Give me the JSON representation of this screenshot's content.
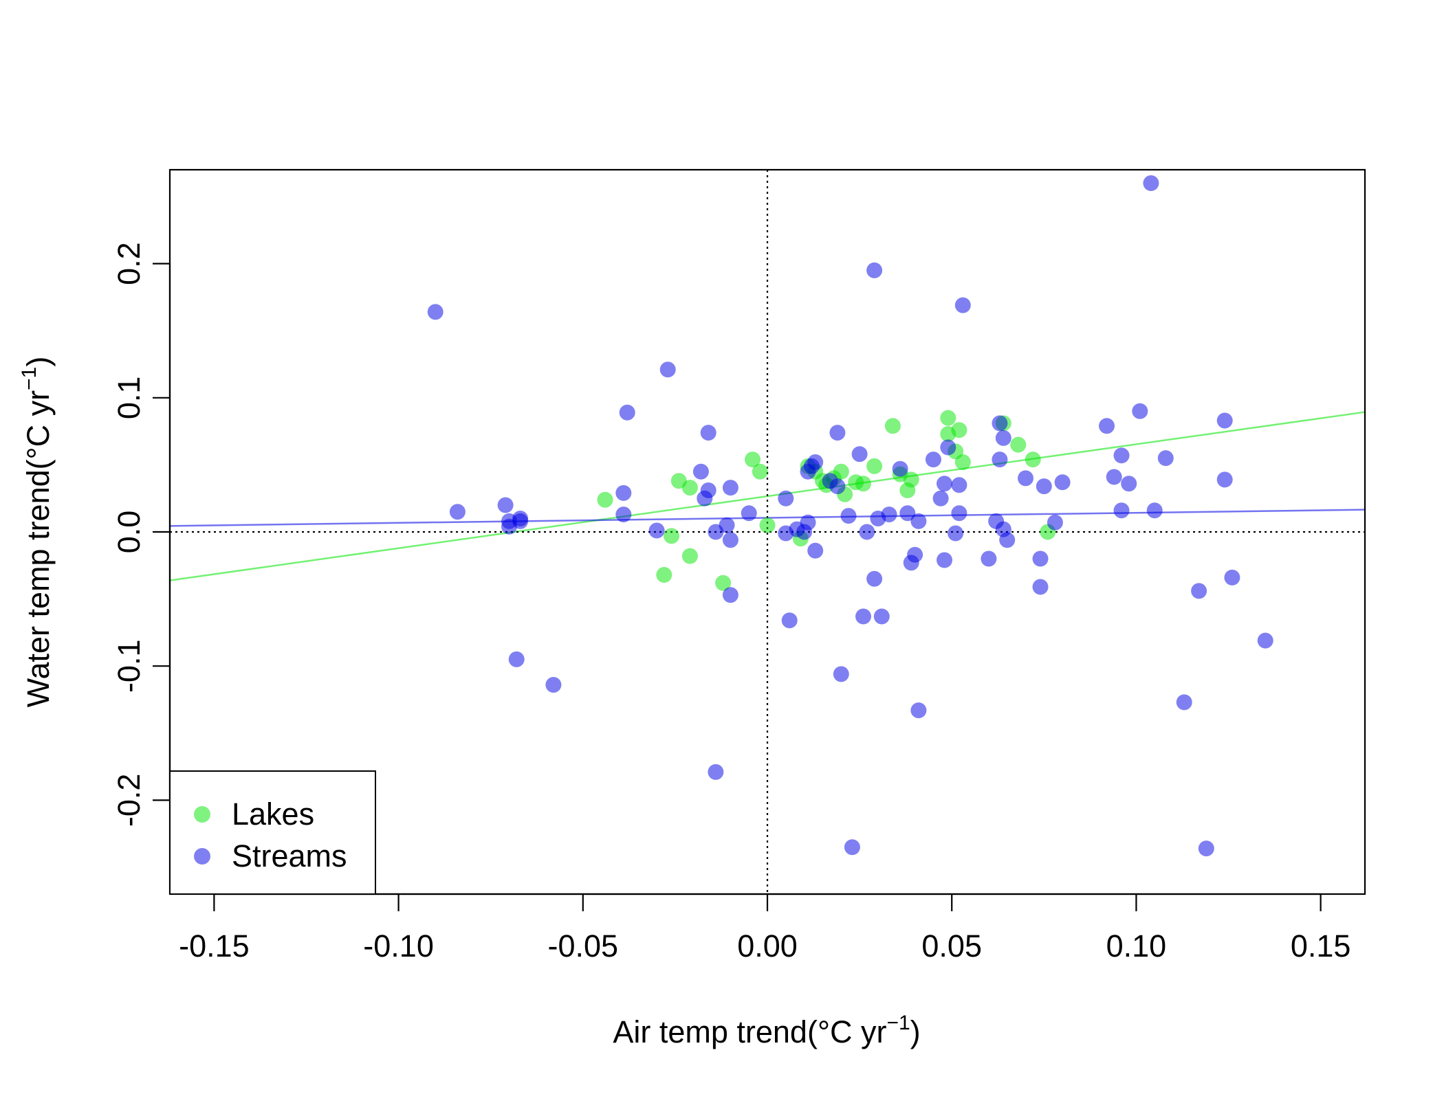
{
  "chart_data": {
    "type": "scatter",
    "title": "",
    "xlabel": {
      "main": "Air temp trend(",
      "unit": "°C yr",
      "exp": "−1",
      "close": ")"
    },
    "ylabel": {
      "main": "Water temp trend(",
      "unit": "°C yr",
      "exp": "−1",
      "close": ")"
    },
    "xlim": [
      -0.162,
      0.162
    ],
    "ylim": [
      -0.27,
      0.27
    ],
    "x_ticks": [
      -0.15,
      -0.1,
      -0.05,
      0.0,
      0.05,
      0.1,
      0.15
    ],
    "x_tick_labels": [
      "-0.15",
      "-0.10",
      "-0.05",
      "0.00",
      "0.05",
      "0.10",
      "0.15"
    ],
    "y_ticks": [
      -0.2,
      -0.1,
      0.0,
      0.1,
      0.2
    ],
    "y_tick_labels": [
      "-0.2",
      "-0.1",
      "0.0",
      "0.1",
      "0.2"
    ],
    "grid": false,
    "reference_lines": {
      "x": 0,
      "y": 0,
      "style": "dotted"
    },
    "legend": {
      "placement": "bottom-left",
      "entries": [
        "Lakes",
        "Streams"
      ]
    },
    "series": [
      {
        "name": "Lakes",
        "color": "#00e600",
        "fit": {
          "intercept": 0.0266,
          "slope": 0.3875
        },
        "points": [
          [
            -0.044,
            0.024
          ],
          [
            -0.028,
            -0.032
          ],
          [
            -0.026,
            -0.003
          ],
          [
            -0.024,
            0.038
          ],
          [
            -0.021,
            0.033
          ],
          [
            -0.021,
            -0.018
          ],
          [
            -0.012,
            -0.038
          ],
          [
            -0.004,
            0.054
          ],
          [
            -0.002,
            0.045
          ],
          [
            0.0,
            0.005
          ],
          [
            0.009,
            -0.005
          ],
          [
            0.011,
            0.049
          ],
          [
            0.013,
            0.045
          ],
          [
            0.015,
            0.038
          ],
          [
            0.016,
            0.035
          ],
          [
            0.018,
            0.04
          ],
          [
            0.02,
            0.045
          ],
          [
            0.021,
            0.028
          ],
          [
            0.024,
            0.037
          ],
          [
            0.026,
            0.036
          ],
          [
            0.029,
            0.049
          ],
          [
            0.034,
            0.079
          ],
          [
            0.036,
            0.043
          ],
          [
            0.038,
            0.031
          ],
          [
            0.039,
            0.039
          ],
          [
            0.049,
            0.085
          ],
          [
            0.049,
            0.073
          ],
          [
            0.051,
            0.06
          ],
          [
            0.052,
            0.076
          ],
          [
            0.053,
            0.052
          ],
          [
            0.064,
            0.081
          ],
          [
            0.068,
            0.065
          ],
          [
            0.072,
            0.054
          ],
          [
            0.076,
            0.0
          ]
        ]
      },
      {
        "name": "Streams",
        "color": "#0000e6",
        "fit": {
          "intercept": 0.0105,
          "slope": 0.0375
        },
        "points": [
          [
            -0.09,
            0.164
          ],
          [
            -0.084,
            0.015
          ],
          [
            -0.071,
            0.02
          ],
          [
            -0.07,
            0.008
          ],
          [
            -0.07,
            0.004
          ],
          [
            -0.067,
            0.008
          ],
          [
            -0.067,
            0.01
          ],
          [
            -0.068,
            -0.095
          ],
          [
            -0.058,
            -0.114
          ],
          [
            -0.038,
            0.089
          ],
          [
            -0.039,
            0.029
          ],
          [
            -0.039,
            0.013
          ],
          [
            -0.03,
            0.001
          ],
          [
            -0.027,
            0.121
          ],
          [
            -0.016,
            0.074
          ],
          [
            -0.018,
            0.045
          ],
          [
            -0.017,
            0.025
          ],
          [
            -0.016,
            0.031
          ],
          [
            -0.014,
            0.0
          ],
          [
            -0.011,
            0.005
          ],
          [
            -0.01,
            0.033
          ],
          [
            -0.01,
            -0.006
          ],
          [
            -0.01,
            -0.047
          ],
          [
            -0.005,
            0.014
          ],
          [
            -0.014,
            -0.179
          ],
          [
            0.005,
            0.025
          ],
          [
            0.005,
            -0.001
          ],
          [
            0.006,
            -0.066
          ],
          [
            0.008,
            0.002
          ],
          [
            0.01,
            0.0
          ],
          [
            0.011,
            0.007
          ],
          [
            0.011,
            0.045
          ],
          [
            0.012,
            0.049
          ],
          [
            0.013,
            0.052
          ],
          [
            0.013,
            -0.014
          ],
          [
            0.017,
            0.038
          ],
          [
            0.019,
            0.074
          ],
          [
            0.019,
            0.034
          ],
          [
            0.02,
            -0.106
          ],
          [
            0.022,
            0.012
          ],
          [
            0.023,
            -0.235
          ],
          [
            0.025,
            0.058
          ],
          [
            0.026,
            -0.063
          ],
          [
            0.027,
            0.0
          ],
          [
            0.029,
            0.195
          ],
          [
            0.029,
            -0.035
          ],
          [
            0.03,
            0.01
          ],
          [
            0.031,
            -0.063
          ],
          [
            0.033,
            0.013
          ],
          [
            0.036,
            0.047
          ],
          [
            0.038,
            0.014
          ],
          [
            0.039,
            -0.023
          ],
          [
            0.04,
            -0.017
          ],
          [
            0.041,
            0.008
          ],
          [
            0.041,
            -0.133
          ],
          [
            0.045,
            0.054
          ],
          [
            0.047,
            0.025
          ],
          [
            0.048,
            0.036
          ],
          [
            0.048,
            -0.021
          ],
          [
            0.049,
            0.063
          ],
          [
            0.051,
            -0.001
          ],
          [
            0.052,
            0.035
          ],
          [
            0.052,
            0.014
          ],
          [
            0.053,
            0.169
          ],
          [
            0.06,
            -0.02
          ],
          [
            0.062,
            0.008
          ],
          [
            0.063,
            0.081
          ],
          [
            0.063,
            0.054
          ],
          [
            0.064,
            0.002
          ],
          [
            0.064,
            0.07
          ],
          [
            0.065,
            -0.006
          ],
          [
            0.07,
            0.04
          ],
          [
            0.074,
            -0.02
          ],
          [
            0.074,
            -0.041
          ],
          [
            0.075,
            0.034
          ],
          [
            0.078,
            0.007
          ],
          [
            0.08,
            0.037
          ],
          [
            0.092,
            0.079
          ],
          [
            0.094,
            0.041
          ],
          [
            0.096,
            0.057
          ],
          [
            0.096,
            0.016
          ],
          [
            0.098,
            0.036
          ],
          [
            0.101,
            0.09
          ],
          [
            0.104,
            0.26
          ],
          [
            0.105,
            0.016
          ],
          [
            0.108,
            0.055
          ],
          [
            0.113,
            -0.127
          ],
          [
            0.117,
            -0.044
          ],
          [
            0.119,
            -0.236
          ],
          [
            0.124,
            0.083
          ],
          [
            0.124,
            0.039
          ],
          [
            0.126,
            -0.034
          ],
          [
            0.135,
            -0.081
          ]
        ]
      }
    ]
  }
}
